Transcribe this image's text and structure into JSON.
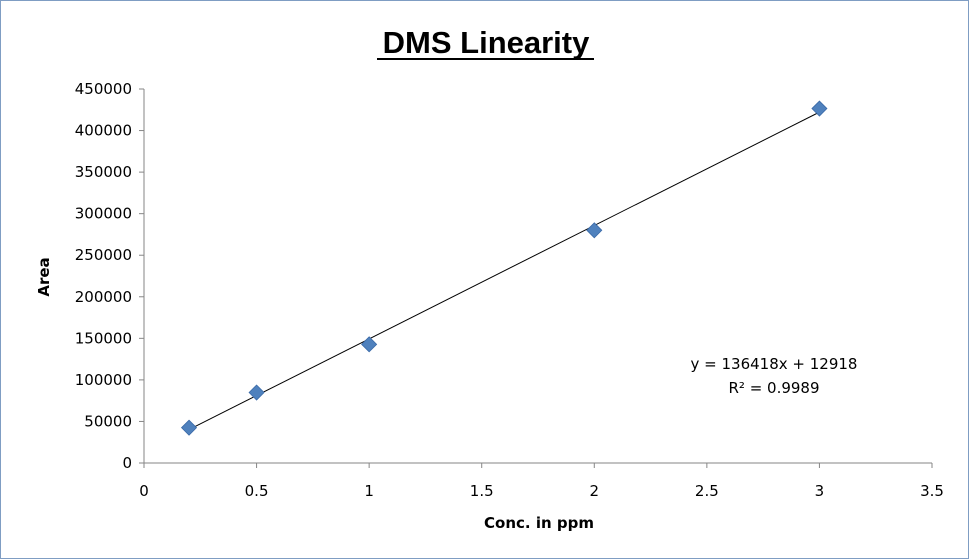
{
  "chart_data": {
    "type": "scatter",
    "title": "DMS Linearity",
    "xlabel": "Conc. in ppm",
    "ylabel": "Area",
    "xlim": [
      0,
      3.5
    ],
    "ylim": [
      0,
      450000
    ],
    "x_ticks": [
      "0",
      "0.5",
      "1",
      "1.5",
      "2",
      "2.5",
      "3",
      "3.5"
    ],
    "y_ticks": [
      "0",
      "50000",
      "100000",
      "150000",
      "200000",
      "250000",
      "300000",
      "350000",
      "400000",
      "450000"
    ],
    "grid": false,
    "legend": "none",
    "series": [
      {
        "x": [
          0.2,
          0.5,
          1,
          2,
          3
        ],
        "y": [
          42500,
          84800,
          142800,
          280000,
          426500
        ],
        "marker": "diamond",
        "color": "#4f81bd"
      }
    ],
    "trendline": {
      "slope": 136418,
      "intercept": 12918,
      "color": "#000000"
    },
    "annotations": {
      "equation": "y = 136418x + 12918",
      "r_squared": "R² = 0.9989"
    }
  }
}
